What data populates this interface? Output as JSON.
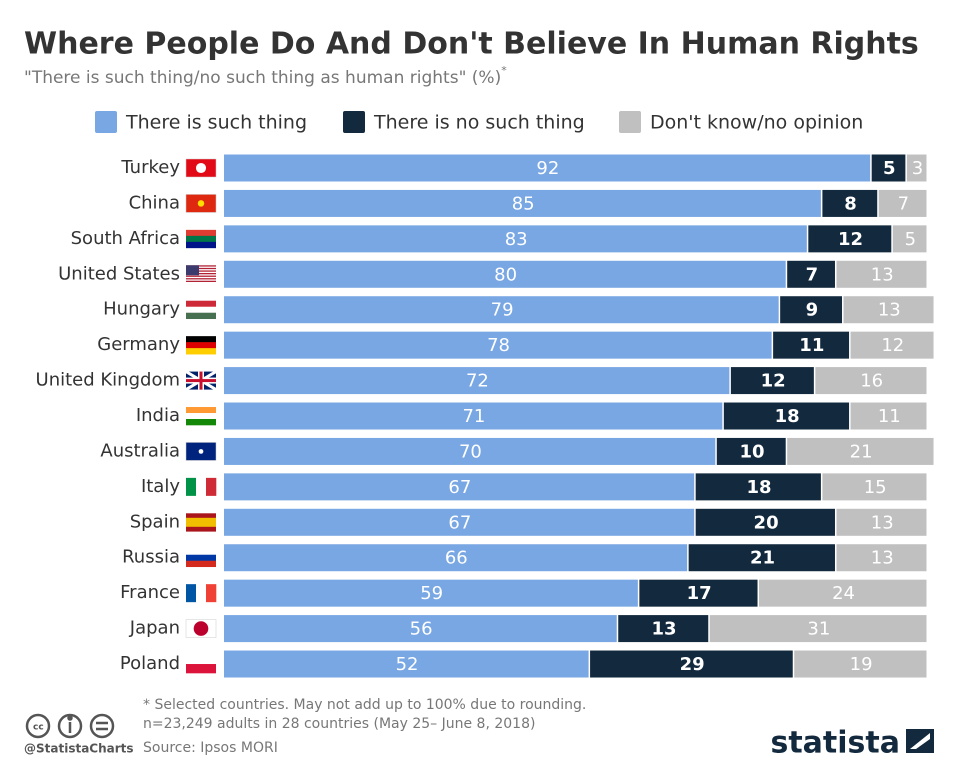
{
  "chart_data": {
    "type": "stacked-bar",
    "title": "Where People Do And Don't Believe In Human Rights",
    "subtitle": "\"There is such thing/no such thing as human rights\" (%)",
    "subtitle_mark": "*",
    "categories": [
      "Turkey",
      "China",
      "South Africa",
      "United States",
      "Hungary",
      "Germany",
      "United Kingdom",
      "India",
      "Australia",
      "Italy",
      "Spain",
      "Russia",
      "France",
      "Japan",
      "Poland"
    ],
    "series": [
      {
        "name": "There is such thing",
        "color": "#79a7e3",
        "values": [
          92,
          85,
          83,
          80,
          79,
          78,
          72,
          71,
          70,
          67,
          67,
          66,
          59,
          56,
          52
        ]
      },
      {
        "name": "There is no such thing",
        "color": "#13293d",
        "values": [
          5,
          8,
          12,
          7,
          9,
          11,
          12,
          18,
          10,
          18,
          20,
          21,
          17,
          13,
          29
        ]
      },
      {
        "name": "Don't know/no opinion",
        "color": "#c0c0c0",
        "values": [
          3,
          7,
          5,
          13,
          13,
          12,
          16,
          11,
          21,
          15,
          13,
          13,
          24,
          31,
          19
        ]
      }
    ],
    "footnotes": [
      "* Selected countries. May not add up to 100% due to rounding.",
      "n=23,249 adults in 28 countries (May 25– June 8, 2018)"
    ],
    "source": "Source: Ipsos MORI",
    "handle": "@StatistaCharts",
    "brand": "statista"
  }
}
